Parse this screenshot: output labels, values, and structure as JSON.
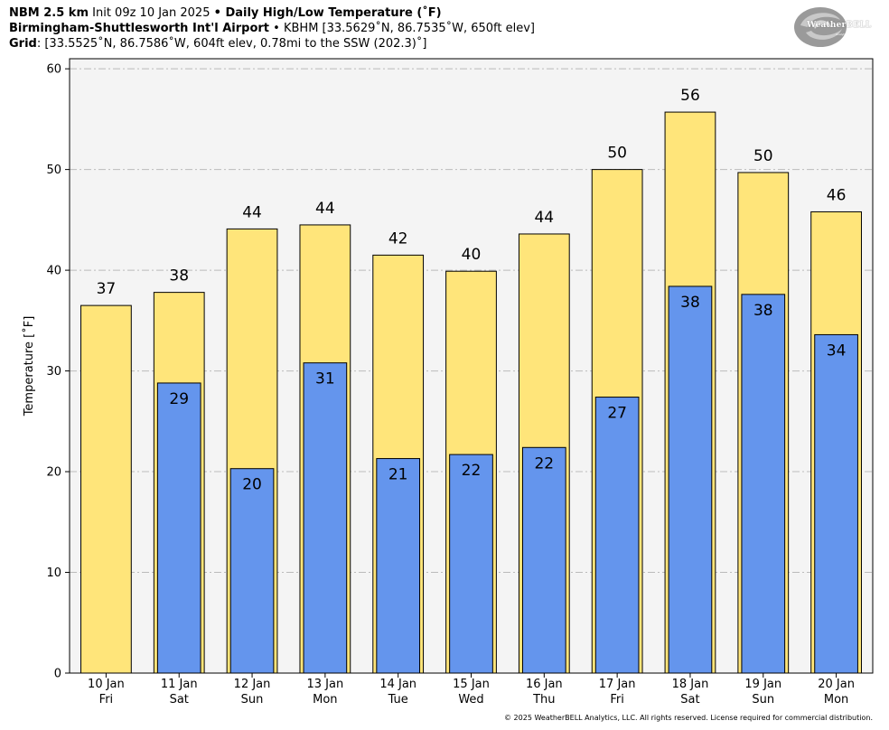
{
  "header": {
    "line1_bold1": "NBM 2.5 km",
    "line1_normal": " Init 09z 10 Jan 2025 ",
    "line1_bullet": "•",
    "line1_bold2": " Daily High/Low Temperature (˚F)",
    "line2_bold": "Birmingham-Shuttlesworth Int'l Airport",
    "line2_bullet": " • ",
    "line2_normal": "KBHM [33.5629˚N, 86.7535˚W, 650ft elev]",
    "line3_bold": "Grid",
    "line3_normal": ": [33.5525˚N, 86.7586˚W, 604ft elev, 0.78mi to the SSW (202.3)˚]"
  },
  "logo": {
    "text": "WeatherBELL",
    "sub": "Analytics LLC"
  },
  "footer": "© 2025 WeatherBELL Analytics, LLC. All rights reserved. License required for commercial distribution.",
  "colors": {
    "high": "#FFE57A",
    "low": "#6495ED",
    "plot_bg": "#F4F4F4",
    "grid": "#BBBBBB"
  },
  "chart_data": {
    "type": "bar",
    "ylabel": "Temperature [˚F]",
    "ylim": [
      0,
      61
    ],
    "yticks": [
      0,
      10,
      20,
      30,
      40,
      50,
      60
    ],
    "grid": true,
    "categories": [
      [
        "10 Jan",
        "Fri"
      ],
      [
        "11 Jan",
        "Sat"
      ],
      [
        "12 Jan",
        "Sun"
      ],
      [
        "13 Jan",
        "Mon"
      ],
      [
        "14 Jan",
        "Tue"
      ],
      [
        "15 Jan",
        "Wed"
      ],
      [
        "16 Jan",
        "Thu"
      ],
      [
        "17 Jan",
        "Fri"
      ],
      [
        "18 Jan",
        "Sat"
      ],
      [
        "19 Jan",
        "Sun"
      ],
      [
        "20 Jan",
        "Mon"
      ]
    ],
    "series": [
      {
        "key": "high",
        "values": [
          36.5,
          37.8,
          44.1,
          44.5,
          41.5,
          39.9,
          43.6,
          50.0,
          55.7,
          49.7,
          45.8
        ],
        "labels": [
          "37",
          "38",
          "44",
          "44",
          "42",
          "40",
          "44",
          "50",
          "56",
          "50",
          "46"
        ]
      },
      {
        "key": "low",
        "values": [
          null,
          28.8,
          20.3,
          30.8,
          21.3,
          21.7,
          22.4,
          27.4,
          38.4,
          37.6,
          33.6
        ],
        "labels": [
          "",
          "29",
          "20",
          "31",
          "21",
          "22",
          "22",
          "27",
          "38",
          "38",
          "34"
        ]
      }
    ]
  }
}
